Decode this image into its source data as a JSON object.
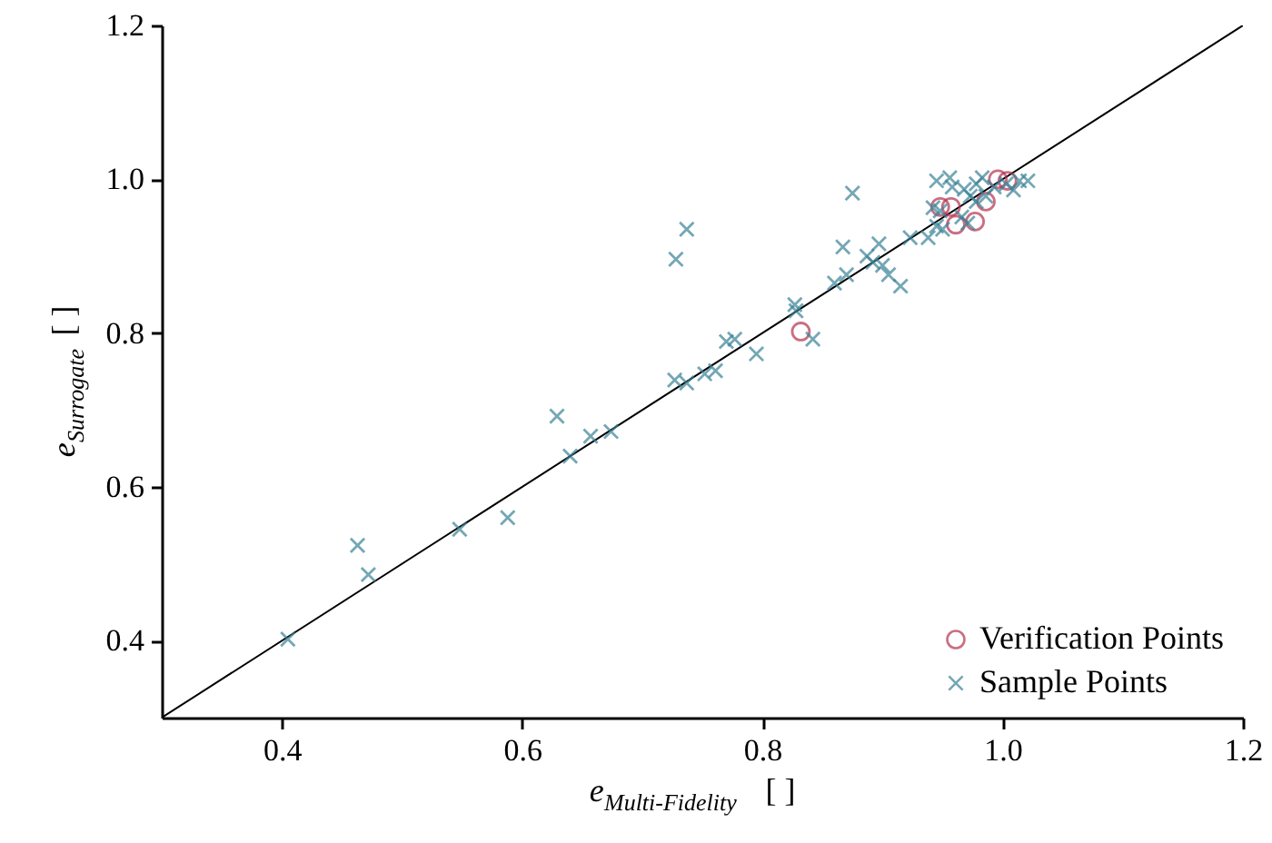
{
  "chart_data": {
    "type": "scatter",
    "xlabel": "e$_{Multi-Fidelity}$ [ ]",
    "ylabel": "e$_{Surrogate}$ [ ]",
    "xlim": [
      0.3,
      1.2
    ],
    "ylim": [
      0.3,
      1.2
    ],
    "xticks": [
      0.4,
      0.6,
      0.8,
      {
        "value": 1,
        "label": "1.0"
      },
      1.2
    ],
    "yticks": [
      0.4,
      0.6,
      0.8,
      {
        "value": 1,
        "label": "1.0"
      },
      1.2
    ],
    "grid": false,
    "legend": "bottom right",
    "series": [
      {
        "type": "line",
        "color": "#000000",
        "marker": "none",
        "line_style": "solid",
        "x": [
          0.3,
          1.2
        ],
        "values": [
          0.3,
          1.2
        ]
      },
      {
        "name": "Verification Points",
        "type": "scatter",
        "marker": "circle",
        "color": "#b5314f",
        "x": [
          0.832,
          0.948,
          0.957,
          0.961,
          0.977,
          0.986,
          0.996,
          1.004
        ],
        "values": [
          0.802,
          0.964,
          0.964,
          0.941,
          0.945,
          0.971,
          1.0,
          0.998
        ]
      },
      {
        "name": "Sample Points",
        "type": "scatter",
        "marker": "cross",
        "color": "#3a8296",
        "x": [
          0.405,
          0.463,
          0.472,
          0.548,
          0.588,
          0.629,
          0.64,
          0.657,
          0.674,
          0.727,
          0.737,
          0.752,
          0.761,
          0.77,
          0.777,
          0.795,
          0.728,
          0.737,
          0.842,
          0.827,
          0.828,
          0.875,
          0.867,
          0.86,
          0.87,
          0.887,
          0.897,
          0.892,
          0.905,
          0.915,
          0.9,
          0.923,
          0.938,
          0.945,
          0.942,
          0.945,
          0.956,
          0.958,
          0.968,
          0.973,
          0.978,
          0.983,
          0.993,
          1.003,
          1.014,
          1.021,
          1.009,
          0.966,
          0.95,
          0.948,
          0.978,
          0.986,
          0.971
        ],
        "values": [
          0.402,
          0.524,
          0.486,
          0.545,
          0.56,
          0.692,
          0.64,
          0.666,
          0.672,
          0.739,
          0.735,
          0.747,
          0.751,
          0.789,
          0.792,
          0.773,
          0.896,
          0.935,
          0.792,
          0.837,
          0.829,
          0.982,
          0.912,
          0.865,
          0.876,
          0.9,
          0.916,
          0.892,
          0.876,
          0.861,
          0.888,
          0.924,
          0.924,
          0.939,
          0.963,
          0.998,
          1.002,
          0.99,
          0.987,
          0.978,
          0.994,
          1.002,
          0.99,
          0.994,
          0.998,
          0.998,
          0.986,
          0.951,
          0.935,
          0.959,
          0.971,
          0.978,
          0.943
        ]
      }
    ]
  }
}
